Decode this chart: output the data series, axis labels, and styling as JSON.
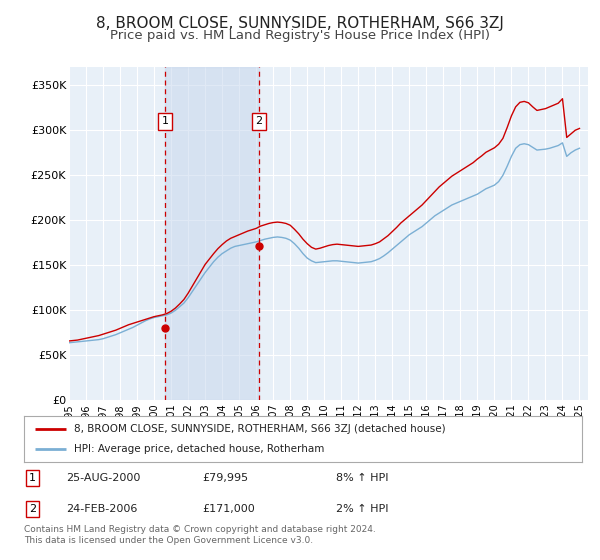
{
  "title": "8, BROOM CLOSE, SUNNYSIDE, ROTHERHAM, S66 3ZJ",
  "subtitle": "Price paid vs. HM Land Registry's House Price Index (HPI)",
  "title_fontsize": 11,
  "subtitle_fontsize": 9.5,
  "ylabel_ticks": [
    "£0",
    "£50K",
    "£100K",
    "£150K",
    "£200K",
    "£250K",
    "£300K",
    "£350K"
  ],
  "ytick_values": [
    0,
    50000,
    100000,
    150000,
    200000,
    250000,
    300000,
    350000
  ],
  "ylim": [
    0,
    370000
  ],
  "xlim_start": 1995.0,
  "xlim_end": 2025.5,
  "xticks": [
    1995,
    1996,
    1997,
    1998,
    1999,
    2000,
    2001,
    2002,
    2003,
    2004,
    2005,
    2006,
    2007,
    2008,
    2009,
    2010,
    2011,
    2012,
    2013,
    2014,
    2015,
    2016,
    2017,
    2018,
    2019,
    2020,
    2021,
    2022,
    2023,
    2024,
    2025
  ],
  "background_color": "#ffffff",
  "plot_bg_color": "#e8f0f8",
  "grid_color": "#ffffff",
  "red_line_color": "#cc0000",
  "blue_line_color": "#7bafd4",
  "marker1_date": 2000.65,
  "marker1_price": 79995,
  "marker2_date": 2006.15,
  "marker2_price": 171000,
  "marker1_label": "1",
  "marker2_label": "2",
  "marker_color": "#cc0000",
  "dashed_line_color": "#cc0000",
  "highlight_fill": "#c8d8ed",
  "highlight_alpha": 0.55,
  "legend_text1": "8, BROOM CLOSE, SUNNYSIDE, ROTHERHAM, S66 3ZJ (detached house)",
  "legend_text2": "HPI: Average price, detached house, Rotherham",
  "sale1_label": "1",
  "sale1_date": "25-AUG-2000",
  "sale1_price": "£79,995",
  "sale1_hpi": "8% ↑ HPI",
  "sale2_label": "2",
  "sale2_date": "24-FEB-2006",
  "sale2_price": "£171,000",
  "sale2_hpi": "2% ↑ HPI",
  "footer_text": "Contains HM Land Registry data © Crown copyright and database right 2024.\nThis data is licensed under the Open Government Licence v3.0.",
  "hpi_years": [
    1995.0,
    1995.25,
    1995.5,
    1995.75,
    1996.0,
    1996.25,
    1996.5,
    1996.75,
    1997.0,
    1997.25,
    1997.5,
    1997.75,
    1998.0,
    1998.25,
    1998.5,
    1998.75,
    1999.0,
    1999.25,
    1999.5,
    1999.75,
    2000.0,
    2000.25,
    2000.5,
    2000.75,
    2001.0,
    2001.25,
    2001.5,
    2001.75,
    2002.0,
    2002.25,
    2002.5,
    2002.75,
    2003.0,
    2003.25,
    2003.5,
    2003.75,
    2004.0,
    2004.25,
    2004.5,
    2004.75,
    2005.0,
    2005.25,
    2005.5,
    2005.75,
    2006.0,
    2006.25,
    2006.5,
    2006.75,
    2007.0,
    2007.25,
    2007.5,
    2007.75,
    2008.0,
    2008.25,
    2008.5,
    2008.75,
    2009.0,
    2009.25,
    2009.5,
    2009.75,
    2010.0,
    2010.25,
    2010.5,
    2010.75,
    2011.0,
    2011.25,
    2011.5,
    2011.75,
    2012.0,
    2012.25,
    2012.5,
    2012.75,
    2013.0,
    2013.25,
    2013.5,
    2013.75,
    2014.0,
    2014.25,
    2014.5,
    2014.75,
    2015.0,
    2015.25,
    2015.5,
    2015.75,
    2016.0,
    2016.25,
    2016.5,
    2016.75,
    2017.0,
    2017.25,
    2017.5,
    2017.75,
    2018.0,
    2018.25,
    2018.5,
    2018.75,
    2019.0,
    2019.25,
    2019.5,
    2019.75,
    2020.0,
    2020.25,
    2020.5,
    2020.75,
    2021.0,
    2021.25,
    2021.5,
    2021.75,
    2022.0,
    2022.25,
    2022.5,
    2022.75,
    2023.0,
    2023.25,
    2023.5,
    2023.75,
    2024.0,
    2024.25,
    2024.5,
    2024.75,
    2025.0
  ],
  "hpi_values": [
    64000,
    64500,
    65000,
    65500,
    66000,
    66500,
    67000,
    67500,
    68500,
    70000,
    71500,
    73000,
    75000,
    77000,
    79000,
    81000,
    83500,
    86000,
    88500,
    90500,
    92000,
    93000,
    94000,
    95000,
    97000,
    100000,
    104000,
    108000,
    114000,
    121000,
    128000,
    135000,
    142000,
    148000,
    154000,
    159000,
    163000,
    166000,
    169000,
    171000,
    172000,
    173000,
    174000,
    175000,
    176000,
    177500,
    179000,
    180000,
    181000,
    181500,
    181000,
    180000,
    178000,
    174000,
    169000,
    163000,
    158000,
    155000,
    153000,
    153500,
    154000,
    154500,
    155000,
    155000,
    154500,
    154000,
    153500,
    153000,
    152500,
    153000,
    153500,
    154000,
    155500,
    157500,
    160500,
    164000,
    168000,
    172000,
    176000,
    180000,
    184000,
    187000,
    190000,
    193000,
    197000,
    201000,
    205000,
    208000,
    211000,
    214000,
    217000,
    219000,
    221000,
    223000,
    225000,
    227000,
    229000,
    232000,
    235000,
    237000,
    239000,
    243000,
    250000,
    260000,
    271000,
    280000,
    284000,
    285000,
    284000,
    281000,
    278000,
    278500,
    279000,
    280000,
    281500,
    283000,
    286000,
    271000,
    275000,
    278000,
    280000
  ],
  "red_years": [
    1995.0,
    1995.25,
    1995.5,
    1995.75,
    1996.0,
    1996.25,
    1996.5,
    1996.75,
    1997.0,
    1997.25,
    1997.5,
    1997.75,
    1998.0,
    1998.25,
    1998.5,
    1998.75,
    1999.0,
    1999.25,
    1999.5,
    1999.75,
    2000.0,
    2000.25,
    2000.5,
    2000.75,
    2001.0,
    2001.25,
    2001.5,
    2001.75,
    2002.0,
    2002.25,
    2002.5,
    2002.75,
    2003.0,
    2003.25,
    2003.5,
    2003.75,
    2004.0,
    2004.25,
    2004.5,
    2004.75,
    2005.0,
    2005.25,
    2005.5,
    2005.75,
    2006.0,
    2006.25,
    2006.5,
    2006.75,
    2007.0,
    2007.25,
    2007.5,
    2007.75,
    2008.0,
    2008.25,
    2008.5,
    2008.75,
    2009.0,
    2009.25,
    2009.5,
    2009.75,
    2010.0,
    2010.25,
    2010.5,
    2010.75,
    2011.0,
    2011.25,
    2011.5,
    2011.75,
    2012.0,
    2012.25,
    2012.5,
    2012.75,
    2013.0,
    2013.25,
    2013.5,
    2013.75,
    2014.0,
    2014.25,
    2014.5,
    2014.75,
    2015.0,
    2015.25,
    2015.5,
    2015.75,
    2016.0,
    2016.25,
    2016.5,
    2016.75,
    2017.0,
    2017.25,
    2017.5,
    2017.75,
    2018.0,
    2018.25,
    2018.5,
    2018.75,
    2019.0,
    2019.25,
    2019.5,
    2019.75,
    2020.0,
    2020.25,
    2020.5,
    2020.75,
    2021.0,
    2021.25,
    2021.5,
    2021.75,
    2022.0,
    2022.25,
    2022.5,
    2022.75,
    2023.0,
    2023.25,
    2023.5,
    2023.75,
    2024.0,
    2024.25,
    2024.5,
    2024.75,
    2025.0
  ],
  "red_values": [
    66000,
    66500,
    67000,
    68000,
    69000,
    70000,
    71000,
    72000,
    73500,
    75000,
    76500,
    78000,
    80000,
    82000,
    84000,
    85500,
    87000,
    88500,
    90000,
    91500,
    93000,
    94000,
    95000,
    96500,
    99000,
    102500,
    107000,
    112000,
    119000,
    127000,
    135000,
    143000,
    151000,
    157000,
    163000,
    168500,
    173000,
    177000,
    180000,
    182000,
    184000,
    186000,
    188000,
    189500,
    191000,
    193500,
    195000,
    196500,
    197500,
    198000,
    197500,
    196500,
    194500,
    190000,
    185000,
    179000,
    174000,
    170000,
    168000,
    169000,
    170500,
    172000,
    173000,
    173500,
    173000,
    172500,
    172000,
    171500,
    171000,
    171500,
    172000,
    172500,
    174000,
    176000,
    179500,
    183000,
    187500,
    192000,
    197000,
    201000,
    205000,
    209000,
    213000,
    217000,
    222000,
    227000,
    232000,
    237000,
    241000,
    245000,
    249000,
    252000,
    255000,
    258000,
    261000,
    264000,
    268000,
    271500,
    275500,
    278000,
    280500,
    284500,
    291000,
    303000,
    316000,
    326000,
    331000,
    332000,
    330500,
    326000,
    322000,
    323000,
    324000,
    326000,
    328000,
    330000,
    335000,
    292000,
    296000,
    300000,
    302000
  ]
}
